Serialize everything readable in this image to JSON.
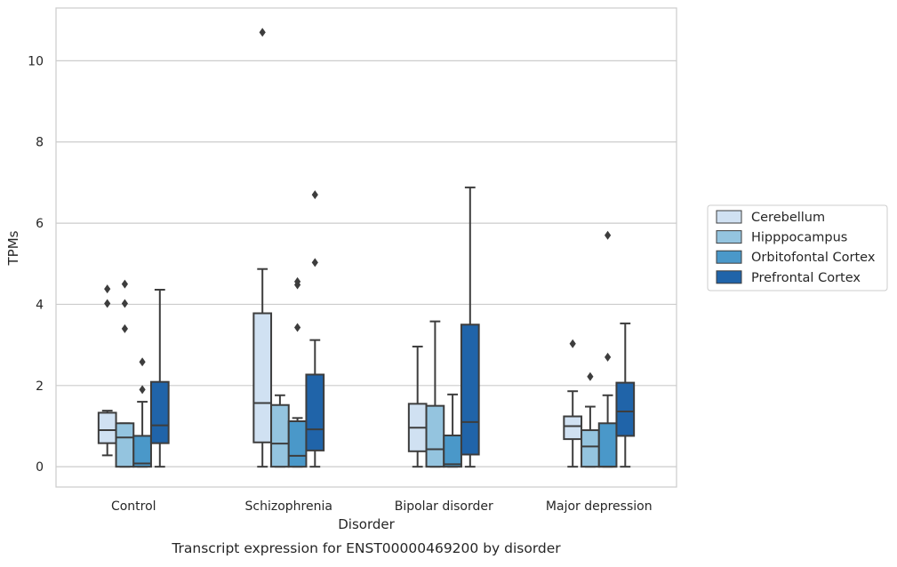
{
  "chart_data": {
    "type": "box",
    "caption": "Transcript expression for ENST00000469200 by disorder",
    "xlabel": "Disorder",
    "ylabel": "TPMs",
    "ylim": [
      -0.5,
      11.3
    ],
    "yticks": [
      0,
      2,
      4,
      6,
      8,
      10
    ],
    "grid": "horizontal",
    "legend_position": "right",
    "categories": [
      "Control",
      "Schizophrenia",
      "Bipolar disorder",
      "Major depression"
    ],
    "series": [
      {
        "name": "Cerebellum",
        "color": "#d0e1f2",
        "boxes": [
          {
            "q1": 0.58,
            "median": 0.9,
            "q3": 1.33,
            "whisker_low": 0.28,
            "whisker_high": 1.38,
            "outliers": [
              4.02,
              4.38
            ]
          },
          {
            "q1": 0.6,
            "median": 1.57,
            "q3": 3.78,
            "whisker_low": 0.0,
            "whisker_high": 4.87,
            "outliers": [
              10.7
            ]
          },
          {
            "q1": 0.38,
            "median": 0.96,
            "q3": 1.55,
            "whisker_low": 0.0,
            "whisker_high": 2.96,
            "outliers": []
          },
          {
            "q1": 0.68,
            "median": 1.0,
            "q3": 1.24,
            "whisker_low": 0.0,
            "whisker_high": 1.86,
            "outliers": [
              3.03
            ]
          }
        ]
      },
      {
        "name": "Hipppocampus",
        "color": "#94c4df",
        "boxes": [
          {
            "q1": 0.0,
            "median": 0.72,
            "q3": 1.07,
            "whisker_low": 0.0,
            "whisker_high": 1.07,
            "outliers": [
              3.4,
              4.02,
              4.5
            ]
          },
          {
            "q1": 0.0,
            "median": 0.57,
            "q3": 1.52,
            "whisker_low": 0.0,
            "whisker_high": 1.76,
            "outliers": []
          },
          {
            "q1": 0.0,
            "median": 0.43,
            "q3": 1.5,
            "whisker_low": 0.0,
            "whisker_high": 3.58,
            "outliers": []
          },
          {
            "q1": 0.0,
            "median": 0.5,
            "q3": 0.9,
            "whisker_low": 0.0,
            "whisker_high": 1.48,
            "outliers": [
              2.22
            ]
          }
        ]
      },
      {
        "name": "Orbitofontal Cortex",
        "color": "#4a98c9",
        "boxes": [
          {
            "q1": 0.0,
            "median": 0.08,
            "q3": 0.76,
            "whisker_low": 0.0,
            "whisker_high": 1.6,
            "outliers": [
              1.9,
              2.58
            ]
          },
          {
            "q1": 0.0,
            "median": 0.27,
            "q3": 1.12,
            "whisker_low": 0.0,
            "whisker_high": 1.2,
            "outliers": [
              3.43,
              4.48,
              4.56
            ]
          },
          {
            "q1": 0.0,
            "median": 0.06,
            "q3": 0.77,
            "whisker_low": 0.0,
            "whisker_high": 1.78,
            "outliers": []
          },
          {
            "q1": 0.0,
            "median": 0.0,
            "q3": 1.07,
            "whisker_low": 0.0,
            "whisker_high": 1.76,
            "outliers": [
              2.7,
              5.7
            ]
          }
        ]
      },
      {
        "name": "Prefrontal Cortex",
        "color": "#2064a9",
        "boxes": [
          {
            "q1": 0.58,
            "median": 1.02,
            "q3": 2.09,
            "whisker_low": 0.0,
            "whisker_high": 4.36,
            "outliers": []
          },
          {
            "q1": 0.4,
            "median": 0.92,
            "q3": 2.27,
            "whisker_low": 0.0,
            "whisker_high": 3.12,
            "outliers": [
              5.03,
              6.7
            ]
          },
          {
            "q1": 0.3,
            "median": 1.1,
            "q3": 3.5,
            "whisker_low": 0.0,
            "whisker_high": 6.88,
            "outliers": []
          },
          {
            "q1": 0.76,
            "median": 1.36,
            "q3": 2.07,
            "whisker_low": 0.0,
            "whisker_high": 3.53,
            "outliers": []
          }
        ]
      }
    ]
  }
}
